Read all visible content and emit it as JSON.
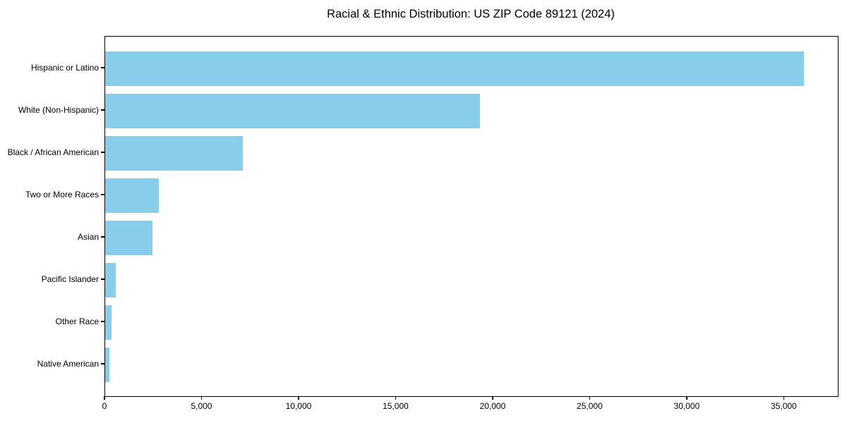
{
  "title": "Racial & Ethnic Distribution: US ZIP Code 89121 (2024)",
  "colors": {
    "bar": "#87CEEB",
    "axis": "#000000",
    "text": "#000000",
    "background": "#FFFFFF"
  },
  "chart_data": {
    "type": "bar",
    "orientation": "horizontal",
    "title": "Racial & Ethnic Distribution: US ZIP Code 89121 (2024)",
    "categories": [
      "Hispanic or Latino",
      "White (Non-Hispanic)",
      "Black / African American",
      "Two or More Races",
      "Asian",
      "Pacific Islander",
      "Other Race",
      "Native American"
    ],
    "values": [
      36000,
      19300,
      7100,
      2750,
      2450,
      550,
      330,
      210
    ],
    "xlabel": "",
    "ylabel": "",
    "xlim": [
      0,
      37750
    ],
    "xticks": [
      0,
      5000,
      10000,
      15000,
      20000,
      25000,
      30000,
      35000
    ],
    "xtick_labels": [
      "0",
      "5,000",
      "10,000",
      "15,000",
      "20,000",
      "25,000",
      "30,000",
      "35,000"
    ],
    "grid": false,
    "legend": "none",
    "bar_color": "#87CEEB"
  }
}
